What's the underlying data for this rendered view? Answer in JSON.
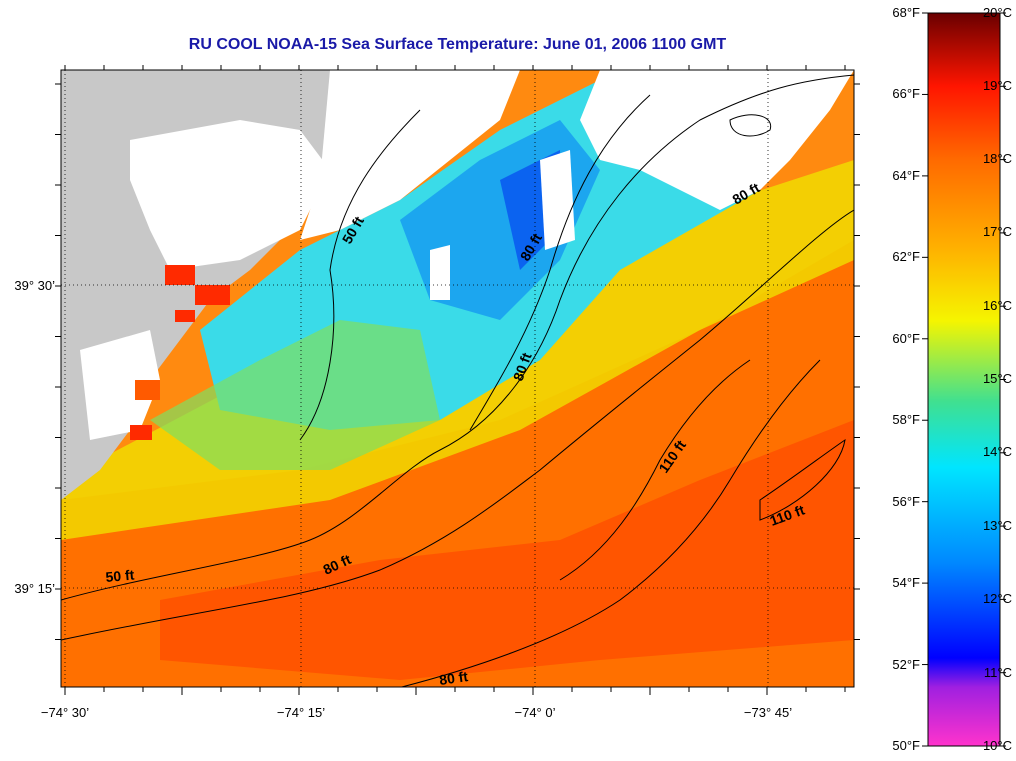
{
  "title": "RU COOL  NOAA-15  Sea Surface Temperature:  June 01, 2006 1100 GMT",
  "axes": {
    "lon_ticks": [
      "−74° 30’",
      "−74° 15’",
      "−74° 0’",
      "−73° 45’"
    ],
    "lat_ticks": [
      "39° 30’",
      "39° 15’"
    ]
  },
  "contours": [
    {
      "label": "50 ft",
      "angle": -60
    },
    {
      "label": "80 ft",
      "angle": -60
    },
    {
      "label": "80 ft",
      "angle": -70
    },
    {
      "label": "80 ft",
      "angle": -30
    },
    {
      "label": "110 ft",
      "angle": -55
    },
    {
      "label": "110 ft",
      "angle": -20
    },
    {
      "label": "50 ft",
      "angle": -5
    },
    {
      "label": "80 ft",
      "angle": -25
    },
    {
      "label": "80 ft",
      "angle": -8
    }
  ],
  "colorbar": {
    "fahrenheit": [
      "68°F",
      "66°F",
      "64°F",
      "62°F",
      "60°F",
      "58°F",
      "56°F",
      "54°F",
      "52°F",
      "50°F"
    ],
    "celsius": [
      "20°C",
      "19°C",
      "18°C",
      "17°C",
      "16°C",
      "15°C",
      "14°C",
      "13°C",
      "12°C",
      "11°C",
      "10°C"
    ],
    "colors": [
      "#ff33cc",
      "#7a2bd6",
      "#0000ff",
      "#00a0ff",
      "#00e5ff",
      "#55e07a",
      "#f5f500",
      "#ffaa00",
      "#ff6a00",
      "#ff1500",
      "#7a0000"
    ]
  },
  "colors": {
    "land": "#c8c8c8",
    "cloud": "#ffffff",
    "title": "#1a1aa8"
  }
}
